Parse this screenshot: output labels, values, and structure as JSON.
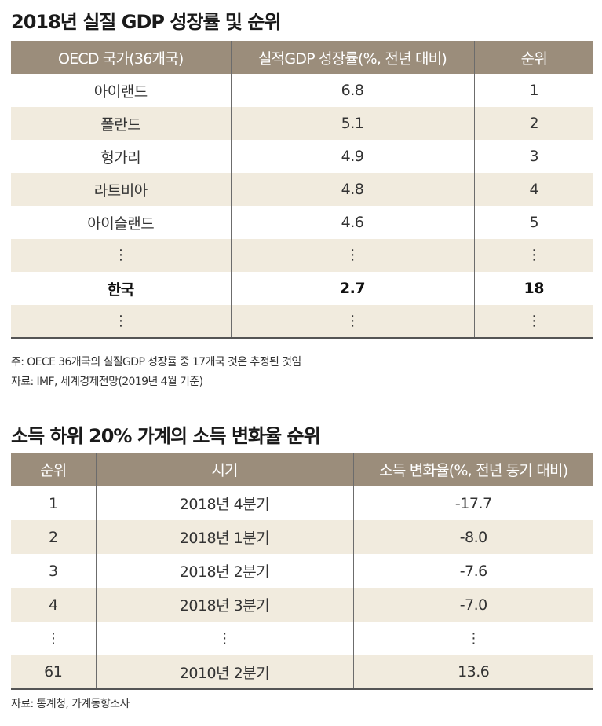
{
  "table1": {
    "title": "2018년 실질 GDP 성장률 및 순위",
    "headers": [
      "OECD 국가(36개국)",
      "실적GDP 성장률(%, 전년 대비)",
      "순위"
    ],
    "rows": [
      [
        "아이랜드",
        "6.8",
        "1"
      ],
      [
        "폴란드",
        "5.1",
        "2"
      ],
      [
        "헝가리",
        "4.9",
        "3"
      ],
      [
        "라트비아",
        "4.8",
        "4"
      ],
      [
        "아이슬랜드",
        "4.6",
        "5"
      ],
      [
        "⋮",
        "⋮",
        "⋮"
      ],
      [
        "한국",
        "2.7",
        "18"
      ],
      [
        "⋮",
        "⋮",
        "⋮"
      ]
    ],
    "note": "주: OECE 36개국의 실질GDP 성장률 중 17개국 것은 추정된 것임",
    "source": "자료: IMF, 세계경제전망(2019년 4월 기준)"
  },
  "table2": {
    "title": "소득 하위 20% 가계의 소득 변화율 순위",
    "headers": [
      "순위",
      "시기",
      "소득 변화율(%, 전년 동기 대비)"
    ],
    "rows": [
      [
        "1",
        "2018년 4분기",
        "-17.7"
      ],
      [
        "2",
        "2018년 1분기",
        "-8.0"
      ],
      [
        "3",
        "2018년 2분기",
        "-7.6"
      ],
      [
        "4",
        "2018년 3분기",
        "-7.0"
      ],
      [
        "⋮",
        "⋮",
        "⋮"
      ],
      [
        "61",
        "2010년 2분기",
        "13.6"
      ]
    ],
    "source": "자료: 통계청, 가계동향조사"
  },
  "colors": {
    "header_bg": "#9b8d7b",
    "stripe_bg": "#f1ebde"
  }
}
